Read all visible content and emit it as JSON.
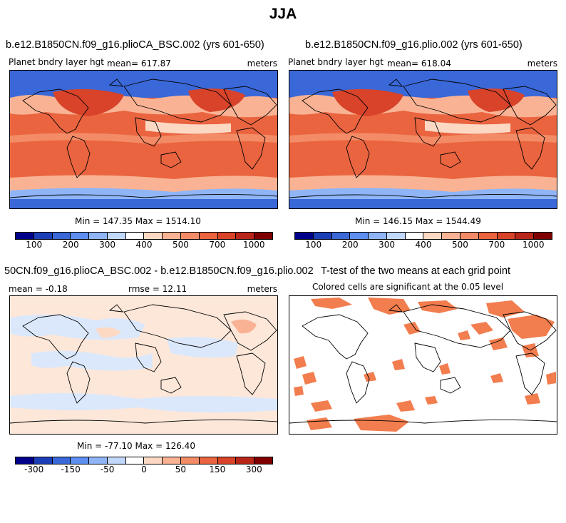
{
  "figure_title": "JJA",
  "chart_data": [
    {
      "type": "heatmap",
      "title": "b.e12.B1850CN.f09_g16.plioCA_BSC.002 (yrs 601-650)",
      "variable": "Planet bndry layer hgt",
      "mean_text": "mean= 617.87",
      "units": "meters",
      "minmax_text": "Min = 147.35 Max = 1514.10",
      "colorbar_levels": [
        "100",
        "200",
        "300",
        "400",
        "500",
        "700",
        "1000"
      ],
      "colors": [
        "#00008b",
        "#1c3fb8",
        "#3a68d8",
        "#5e8ef0",
        "#8fb5f7",
        "#c1d8fb",
        "#ffffff",
        "#fdd9c4",
        "#f9b394",
        "#f38c66",
        "#ea643f",
        "#d8432a",
        "#b92519",
        "#800000"
      ]
    },
    {
      "type": "heatmap",
      "title": "b.e12.B1850CN.f09_g16.plio.002 (yrs 601-650)",
      "variable": "Planet bndry layer hgt",
      "mean_text": "mean= 618.04",
      "units": "meters",
      "minmax_text": "Min = 146.15 Max = 1544.49",
      "colorbar_levels": [
        "100",
        "200",
        "300",
        "400",
        "500",
        "700",
        "1000"
      ],
      "colors": [
        "#00008b",
        "#1c3fb8",
        "#3a68d8",
        "#5e8ef0",
        "#8fb5f7",
        "#c1d8fb",
        "#ffffff",
        "#fdd9c4",
        "#f9b394",
        "#f38c66",
        "#ea643f",
        "#d8432a",
        "#b92519",
        "#800000"
      ]
    },
    {
      "type": "heatmap",
      "title": "50CN.f09_g16.plioCA_BSC.002 - b.e12.B1850CN.f09_g16.plio.002",
      "mean_text": "mean =  -0.18",
      "rmse_text": "rmse =  12.11",
      "units": "meters",
      "minmax_text": "Min = -77.10 Max = 126.40",
      "colorbar_levels": [
        "-300",
        "-150",
        "-50",
        "0",
        "50",
        "150",
        "300"
      ],
      "colors": [
        "#00008b",
        "#1c3fb8",
        "#3a68d8",
        "#5e8ef0",
        "#8fb5f7",
        "#c1d8fb",
        "#ffffff",
        "#fdd9c4",
        "#f9b394",
        "#f38c66",
        "#ea643f",
        "#d8432a",
        "#b92519",
        "#800000"
      ]
    },
    {
      "type": "heatmap",
      "title": "T-test of the two means at each grid point",
      "subtitle": "Colored cells are significant at the 0.05 level",
      "colors": [
        "#f27d4e"
      ]
    }
  ]
}
